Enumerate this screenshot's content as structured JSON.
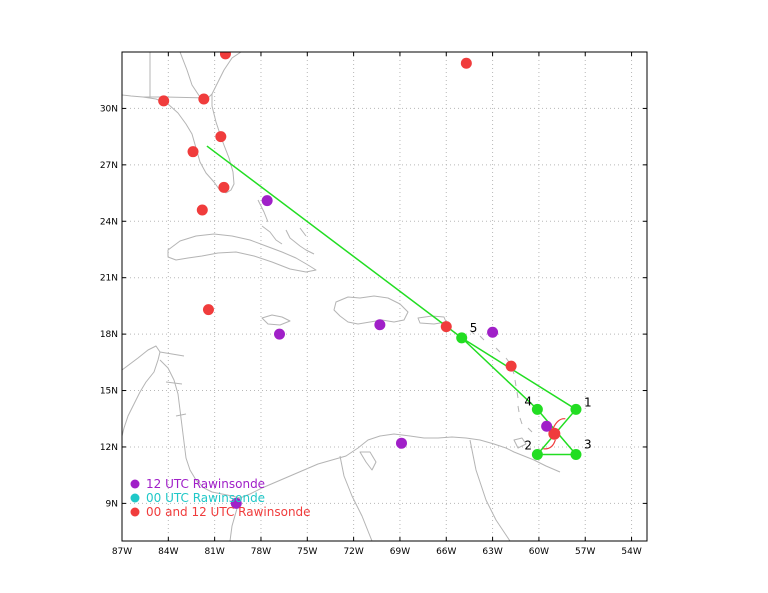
{
  "map": {
    "lon_range": [
      -87,
      -53
    ],
    "lat_range": [
      7,
      33
    ],
    "lon_ticks": [
      {
        "lon": -87,
        "label": "87W"
      },
      {
        "lon": -84,
        "label": "84W"
      },
      {
        "lon": -81,
        "label": "81W"
      },
      {
        "lon": -78,
        "label": "78W"
      },
      {
        "lon": -75,
        "label": "75W"
      },
      {
        "lon": -72,
        "label": "72W"
      },
      {
        "lon": -69,
        "label": "69W"
      },
      {
        "lon": -66,
        "label": "66W"
      },
      {
        "lon": -63,
        "label": "63W"
      },
      {
        "lon": -60,
        "label": "60W"
      },
      {
        "lon": -57,
        "label": "57W"
      },
      {
        "lon": -54,
        "label": "54W"
      }
    ],
    "lat_ticks": [
      {
        "lat": 9,
        "label": "9N"
      },
      {
        "lat": 12,
        "label": "12N"
      },
      {
        "lat": 15,
        "label": "15N"
      },
      {
        "lat": 18,
        "label": "18N"
      },
      {
        "lat": 21,
        "label": "21N"
      },
      {
        "lat": 24,
        "label": "24N"
      },
      {
        "lat": 27,
        "label": "27N"
      },
      {
        "lat": 30,
        "label": "30N"
      }
    ],
    "colors": {
      "coast": "#b4b4b4",
      "grid": "#b8b8b8",
      "track": "#22dd22",
      "utc12": "#a020c8",
      "utc00": "#20c8c8",
      "both": "#f03c3c",
      "storm": "#f03c3c"
    },
    "flight_track": [
      {
        "lon": -81.5,
        "lat": 28.0
      },
      {
        "lon": -65.0,
        "lat": 17.8
      },
      {
        "lon": -57.6,
        "lat": 14.0
      },
      {
        "lon": -60.1,
        "lat": 11.6
      },
      {
        "lon": -57.6,
        "lat": 11.6
      },
      {
        "lon": -60.1,
        "lat": 14.0
      },
      {
        "lon": -65.0,
        "lat": 17.8
      }
    ],
    "track_points": [
      {
        "lon": -57.6,
        "lat": 14.0,
        "label": "1"
      },
      {
        "lon": -60.1,
        "lat": 11.6,
        "label": "2"
      },
      {
        "lon": -57.6,
        "lat": 11.6,
        "label": "3"
      },
      {
        "lon": -60.1,
        "lat": 14.0,
        "label": "4"
      },
      {
        "lon": -65.0,
        "lat": 17.8,
        "label": "5"
      }
    ],
    "storm_center": {
      "lon": -59.0,
      "lat": 12.7
    },
    "rawinsondes_12utc": [
      {
        "lon": -77.6,
        "lat": 25.1
      },
      {
        "lon": -63.0,
        "lat": 18.1
      },
      {
        "lon": -70.3,
        "lat": 18.5
      },
      {
        "lon": -76.8,
        "lat": 18.0
      },
      {
        "lon": -68.9,
        "lat": 12.2
      },
      {
        "lon": -59.5,
        "lat": 13.1
      },
      {
        "lon": -79.6,
        "lat": 9.0
      }
    ],
    "rawinsondes_00_12utc": [
      {
        "lon": -80.3,
        "lat": 32.9
      },
      {
        "lon": -84.3,
        "lat": 30.4
      },
      {
        "lon": -81.7,
        "lat": 30.5
      },
      {
        "lon": -80.6,
        "lat": 28.5
      },
      {
        "lon": -82.4,
        "lat": 27.7
      },
      {
        "lon": -80.4,
        "lat": 25.8
      },
      {
        "lon": -81.8,
        "lat": 24.6
      },
      {
        "lon": -81.4,
        "lat": 19.3
      },
      {
        "lon": -66.0,
        "lat": 18.4
      },
      {
        "lon": -64.7,
        "lat": 32.4
      },
      {
        "lon": -61.8,
        "lat": 16.3
      }
    ],
    "legend": [
      {
        "label": "12 UTC Rawinsonde",
        "color": "#a020c8"
      },
      {
        "label": "00 UTC Rawinsonde",
        "color": "#20c8c8"
      },
      {
        "label": "00 and 12 UTC Rawinsonde",
        "color": "#f03c3c"
      }
    ]
  }
}
